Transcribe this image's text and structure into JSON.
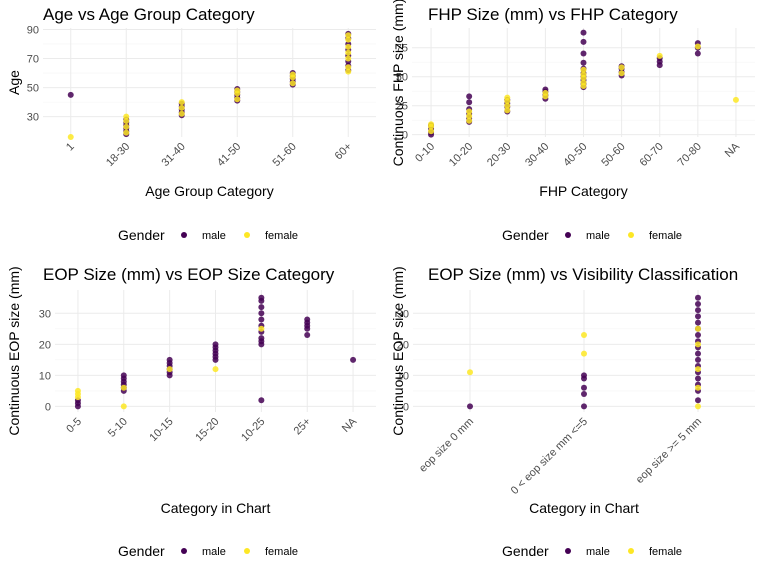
{
  "colors": {
    "male": "#440154",
    "female": "#FDE725",
    "grid": "#ebebeb"
  },
  "legend": {
    "title": "Gender",
    "items": [
      "male",
      "female"
    ]
  },
  "chart_data": [
    {
      "type": "scatter",
      "title": "Age vs Age Group Category",
      "xlabel": "Age Group Category",
      "ylabel": "Age",
      "categories": [
        "1",
        "18-30",
        "31-40",
        "41-50",
        "51-60",
        "60+"
      ],
      "ylim": [
        16,
        91
      ],
      "yticks": [
        30,
        50,
        70,
        90
      ],
      "series": [
        {
          "name": "male",
          "points": [
            [
              "1",
              45
            ],
            [
              "18-30",
              18
            ],
            [
              "18-30",
              20
            ],
            [
              "18-30",
              22
            ],
            [
              "18-30",
              24
            ],
            [
              "18-30",
              26
            ],
            [
              "18-30",
              28
            ],
            [
              "31-40",
              31
            ],
            [
              "31-40",
              33
            ],
            [
              "31-40",
              35
            ],
            [
              "31-40",
              37
            ],
            [
              "31-40",
              39
            ],
            [
              "41-50",
              41
            ],
            [
              "41-50",
              43
            ],
            [
              "41-50",
              45
            ],
            [
              "41-50",
              47
            ],
            [
              "41-50",
              49
            ],
            [
              "51-60",
              52
            ],
            [
              "51-60",
              54
            ],
            [
              "51-60",
              56
            ],
            [
              "51-60",
              58
            ],
            [
              "51-60",
              60
            ],
            [
              "60+",
              62
            ],
            [
              "60+",
              65
            ],
            [
              "60+",
              68
            ],
            [
              "60+",
              72
            ],
            [
              "60+",
              76
            ],
            [
              "60+",
              80
            ],
            [
              "60+",
              84
            ],
            [
              "60+",
              87
            ]
          ]
        },
        {
          "name": "female",
          "points": [
            [
              "1",
              16
            ],
            [
              "18-30",
              19
            ],
            [
              "18-30",
              23
            ],
            [
              "18-30",
              27
            ],
            [
              "18-30",
              30
            ],
            [
              "31-40",
              32
            ],
            [
              "31-40",
              36
            ],
            [
              "31-40",
              40
            ],
            [
              "41-50",
              42
            ],
            [
              "41-50",
              46
            ],
            [
              "41-50",
              48
            ],
            [
              "51-60",
              53
            ],
            [
              "51-60",
              57
            ],
            [
              "51-60",
              59
            ],
            [
              "60+",
              61
            ],
            [
              "60+",
              64
            ],
            [
              "60+",
              70
            ],
            [
              "60+",
              74
            ],
            [
              "60+",
              78
            ],
            [
              "60+",
              83
            ],
            [
              "60+",
              86
            ]
          ]
        }
      ]
    },
    {
      "type": "scatter",
      "title": "FHP Size (mm) vs FHP Category",
      "xlabel": "FHP Category",
      "ylabel": "Continuous FHP size (mm)",
      "categories": [
        "0-10",
        "10-20",
        "20-30",
        "30-40",
        "40-50",
        "50-60",
        "60-70",
        "70-80",
        "NA"
      ],
      "ylim": [
        -2,
        92
      ],
      "yticks": [
        0,
        25,
        50,
        75
      ],
      "series": [
        {
          "name": "male",
          "points": [
            [
              "0-10",
              0
            ],
            [
              "0-10",
              2
            ],
            [
              "0-10",
              5
            ],
            [
              "0-10",
              8
            ],
            [
              "10-20",
              11
            ],
            [
              "10-20",
              14
            ],
            [
              "10-20",
              18
            ],
            [
              "10-20",
              22
            ],
            [
              "10-20",
              28
            ],
            [
              "10-20",
              33
            ],
            [
              "20-30",
              20
            ],
            [
              "20-30",
              24
            ],
            [
              "20-30",
              27
            ],
            [
              "20-30",
              30
            ],
            [
              "30-40",
              31
            ],
            [
              "30-40",
              34
            ],
            [
              "30-40",
              37
            ],
            [
              "30-40",
              39
            ],
            [
              "40-50",
              41
            ],
            [
              "40-50",
              44
            ],
            [
              "40-50",
              47
            ],
            [
              "40-50",
              50
            ],
            [
              "40-50",
              53
            ],
            [
              "40-50",
              57
            ],
            [
              "40-50",
              62
            ],
            [
              "40-50",
              70
            ],
            [
              "40-50",
              80
            ],
            [
              "40-50",
              88
            ],
            [
              "50-60",
              51
            ],
            [
              "50-60",
              54
            ],
            [
              "50-60",
              57
            ],
            [
              "50-60",
              59
            ],
            [
              "60-70",
              60
            ],
            [
              "60-70",
              63
            ],
            [
              "60-70",
              66
            ],
            [
              "70-80",
              70
            ],
            [
              "70-80",
              75
            ],
            [
              "70-80",
              79
            ]
          ]
        },
        {
          "name": "female",
          "points": [
            [
              "0-10",
              3
            ],
            [
              "0-10",
              7
            ],
            [
              "0-10",
              9
            ],
            [
              "10-20",
              12
            ],
            [
              "10-20",
              16
            ],
            [
              "10-20",
              20
            ],
            [
              "20-30",
              21
            ],
            [
              "20-30",
              25
            ],
            [
              "20-30",
              29
            ],
            [
              "20-30",
              32
            ],
            [
              "30-40",
              33
            ],
            [
              "30-40",
              36
            ],
            [
              "40-50",
              42
            ],
            [
              "40-50",
              45
            ],
            [
              "40-50",
              49
            ],
            [
              "40-50",
              52
            ],
            [
              "40-50",
              56
            ],
            [
              "50-60",
              53
            ],
            [
              "50-60",
              58
            ],
            [
              "60-70",
              68
            ],
            [
              "70-80",
              76
            ],
            [
              "NA",
              30
            ]
          ]
        }
      ]
    },
    {
      "type": "scatter",
      "title": "EOP Size (mm) vs EOP Size Category",
      "xlabel": "Category in Chart",
      "ylabel": "Continuous EOP size (mm)",
      "categories": [
        "0-5",
        "5-10",
        "10-15",
        "15-20",
        "10-25",
        "25+",
        "NA"
      ],
      "ylim": [
        -1.8,
        37.5
      ],
      "yticks": [
        0,
        10,
        20,
        30
      ],
      "series": [
        {
          "name": "male",
          "points": [
            [
              "0-5",
              0
            ],
            [
              "0-5",
              1
            ],
            [
              "0-5",
              2
            ],
            [
              "5-10",
              5
            ],
            [
              "5-10",
              6
            ],
            [
              "5-10",
              7
            ],
            [
              "5-10",
              8
            ],
            [
              "5-10",
              9
            ],
            [
              "5-10",
              10
            ],
            [
              "10-15",
              10
            ],
            [
              "10-15",
              11
            ],
            [
              "10-15",
              12
            ],
            [
              "10-15",
              13
            ],
            [
              "10-15",
              14
            ],
            [
              "10-15",
              15
            ],
            [
              "15-20",
              15
            ],
            [
              "15-20",
              16
            ],
            [
              "15-20",
              17
            ],
            [
              "15-20",
              18
            ],
            [
              "15-20",
              19
            ],
            [
              "15-20",
              20
            ],
            [
              "10-25",
              2
            ],
            [
              "10-25",
              20
            ],
            [
              "10-25",
              21
            ],
            [
              "10-25",
              22
            ],
            [
              "10-25",
              24
            ],
            [
              "10-25",
              26
            ],
            [
              "10-25",
              28
            ],
            [
              "10-25",
              30
            ],
            [
              "10-25",
              32
            ],
            [
              "10-25",
              34
            ],
            [
              "10-25",
              35
            ],
            [
              "25+",
              23
            ],
            [
              "25+",
              25
            ],
            [
              "25+",
              26
            ],
            [
              "25+",
              27
            ],
            [
              "25+",
              28
            ],
            [
              "NA",
              15
            ]
          ]
        },
        {
          "name": "female",
          "points": [
            [
              "0-5",
              3
            ],
            [
              "0-5",
              4
            ],
            [
              "0-5",
              5
            ],
            [
              "5-10",
              0
            ],
            [
              "5-10",
              6
            ],
            [
              "10-15",
              12
            ],
            [
              "15-20",
              12
            ],
            [
              "10-25",
              25
            ]
          ]
        }
      ]
    },
    {
      "type": "scatter",
      "title": "EOP Size (mm) vs Visibility Classification",
      "xlabel": "Category in Chart",
      "ylabel": "Continuous EOP size (mm)",
      "categories": [
        "eop size 0 mm",
        "0 < eop size mm <=5",
        "eop size >= 5 mm"
      ],
      "ylim": [
        -1.8,
        37.5
      ],
      "yticks": [
        0,
        10,
        20,
        30
      ],
      "series": [
        {
          "name": "male",
          "points": [
            [
              "eop size 0 mm",
              0
            ],
            [
              "0 < eop size mm <=5",
              0
            ],
            [
              "0 < eop size mm <=5",
              4
            ],
            [
              "0 < eop size mm <=5",
              6
            ],
            [
              "0 < eop size mm <=5",
              9
            ],
            [
              "0 < eop size mm <=5",
              10
            ],
            [
              "eop size >= 5 mm",
              2
            ],
            [
              "eop size >= 5 mm",
              5
            ],
            [
              "eop size >= 5 mm",
              7
            ],
            [
              "eop size >= 5 mm",
              9
            ],
            [
              "eop size >= 5 mm",
              11
            ],
            [
              "eop size >= 5 mm",
              13
            ],
            [
              "eop size >= 5 mm",
              15
            ],
            [
              "eop size >= 5 mm",
              17
            ],
            [
              "eop size >= 5 mm",
              19
            ],
            [
              "eop size >= 5 mm",
              21
            ],
            [
              "eop size >= 5 mm",
              23
            ],
            [
              "eop size >= 5 mm",
              25
            ],
            [
              "eop size >= 5 mm",
              27
            ],
            [
              "eop size >= 5 mm",
              29
            ],
            [
              "eop size >= 5 mm",
              31
            ],
            [
              "eop size >= 5 mm",
              33
            ],
            [
              "eop size >= 5 mm",
              35
            ]
          ]
        },
        {
          "name": "female",
          "points": [
            [
              "eop size 0 mm",
              11
            ],
            [
              "0 < eop size mm <=5",
              17
            ],
            [
              "0 < eop size mm <=5",
              23
            ],
            [
              "eop size >= 5 mm",
              0
            ],
            [
              "eop size >= 5 mm",
              6
            ],
            [
              "eop size >= 5 mm",
              12
            ],
            [
              "eop size >= 5 mm",
              20
            ],
            [
              "eop size >= 5 mm",
              25
            ]
          ]
        }
      ]
    }
  ]
}
